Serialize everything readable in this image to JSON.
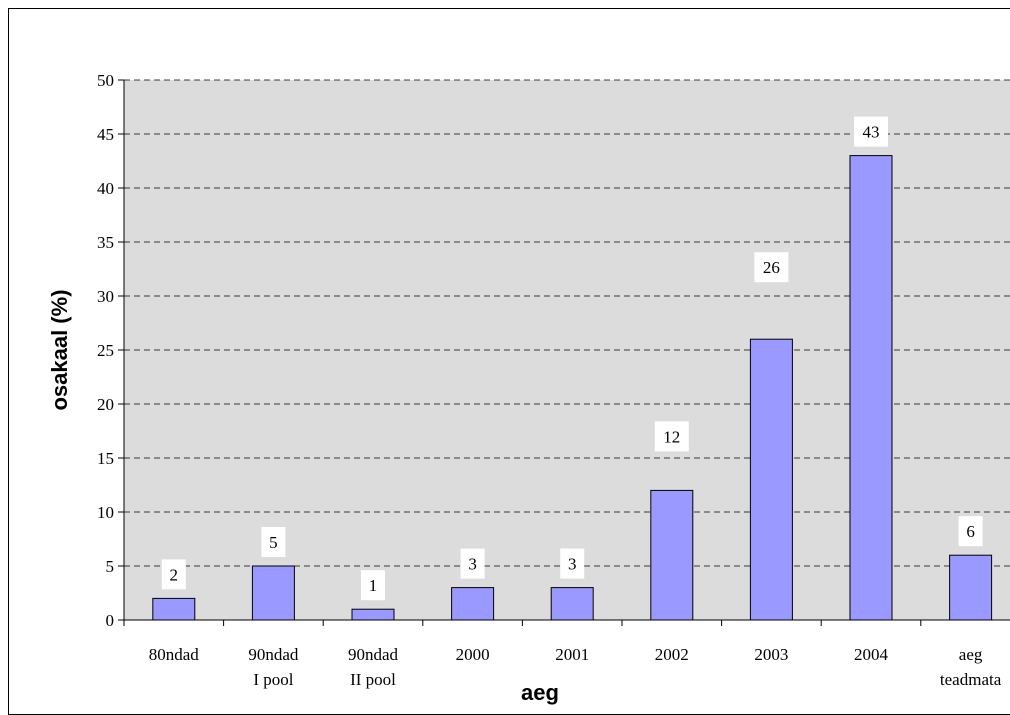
{
  "chart_data": {
    "type": "bar",
    "xlabel": "aeg",
    "ylabel": "osakaal (%)",
    "ylim": [
      0,
      50
    ],
    "yticks": [
      0,
      5,
      10,
      15,
      20,
      25,
      30,
      35,
      40,
      45,
      50
    ],
    "grid": true,
    "categories": [
      [
        "80ndad"
      ],
      [
        "90ndad",
        "I pool"
      ],
      [
        "90ndad",
        "II pool"
      ],
      [
        "2000"
      ],
      [
        "2001"
      ],
      [
        "2002"
      ],
      [
        "2003"
      ],
      [
        "2004"
      ],
      [
        "aeg",
        "teadmata"
      ]
    ],
    "values": [
      2,
      5,
      1,
      3,
      3,
      12,
      26,
      43,
      6
    ],
    "colors": {
      "bar": "#9999ff",
      "plot_bg": "#dcdcdc",
      "grid": "#000000"
    }
  }
}
